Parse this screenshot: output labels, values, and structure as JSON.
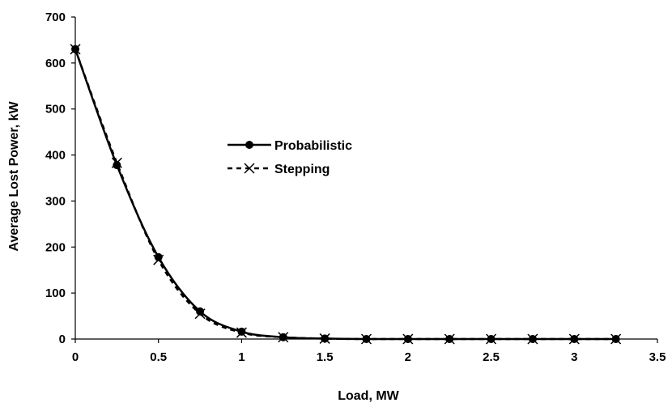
{
  "chart_data": {
    "type": "line",
    "title": "",
    "xlabel": "Load, MW",
    "ylabel": "Average Lost Power, kW",
    "xlim": [
      0,
      3.5
    ],
    "ylim": [
      0,
      700
    ],
    "xticks": [
      "0",
      "0.5",
      "1",
      "1.5",
      "2",
      "2.5",
      "3",
      "3.5"
    ],
    "yticks": [
      "0",
      "100",
      "200",
      "300",
      "400",
      "500",
      "600",
      "700"
    ],
    "grid": false,
    "legend_position": "center-left",
    "x": [
      0,
      0.25,
      0.5,
      0.75,
      1.0,
      1.25,
      1.5,
      1.75,
      2.0,
      2.25,
      2.5,
      2.75,
      3.0,
      3.25
    ],
    "series": [
      {
        "name": "Probabilistic",
        "marker": "circle",
        "line_style": "solid",
        "color": "#000000",
        "values": [
          630,
          378,
          178,
          60,
          16,
          4,
          1,
          0,
          0,
          0,
          0,
          0,
          0,
          0
        ]
      },
      {
        "name": "Stepping",
        "marker": "x",
        "line_style": "dashed",
        "color": "#000000",
        "values": [
          630,
          383,
          172,
          55,
          14,
          4,
          1,
          0,
          0,
          0,
          0,
          0,
          0,
          0
        ]
      }
    ]
  }
}
